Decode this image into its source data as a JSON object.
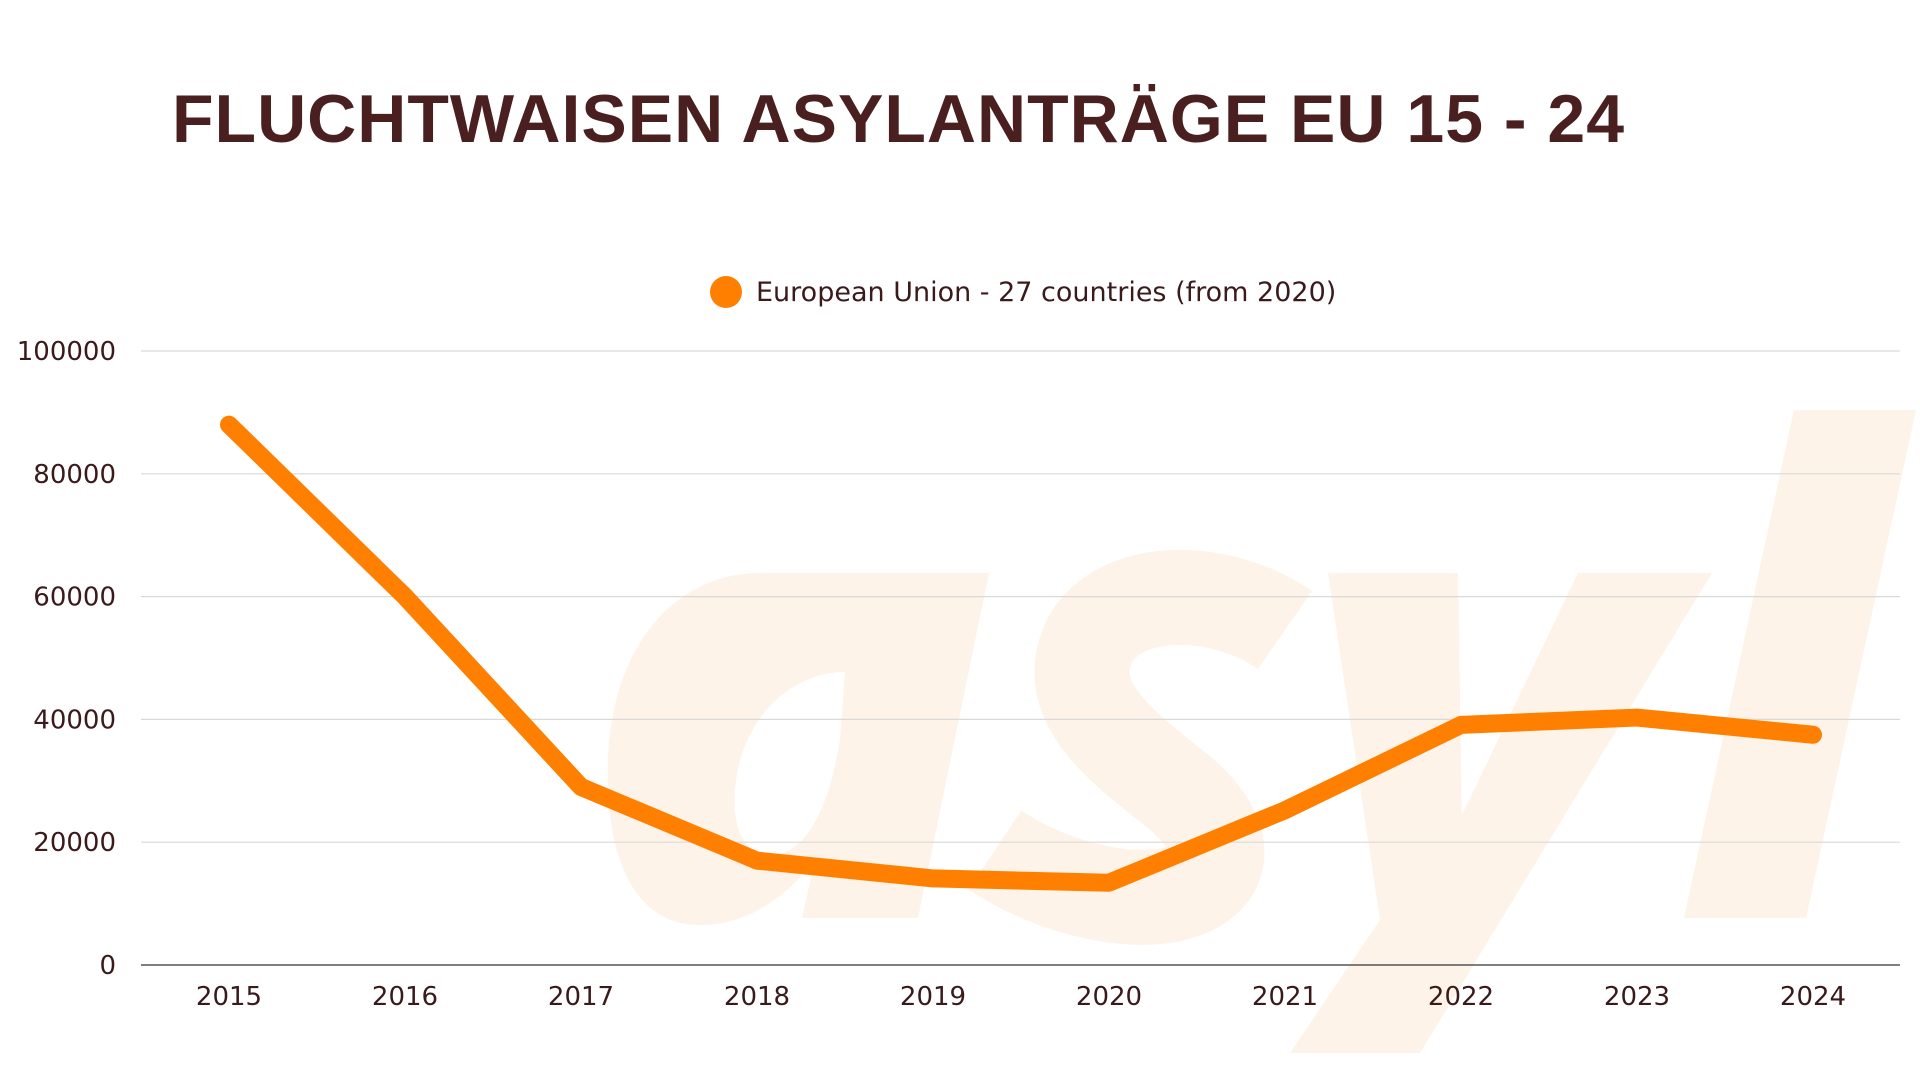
{
  "title": "FLUCHTWAISEN ASYLANTRÄGE EU 15 - 24",
  "watermark": "asyl",
  "chart_data": {
    "type": "line",
    "title": "FLUCHTWAISEN ASYLANTRÄGE EU 15 - 24",
    "xlabel": "",
    "ylabel": "",
    "categories": [
      "2015",
      "2016",
      "2017",
      "2018",
      "2019",
      "2020",
      "2021",
      "2022",
      "2023",
      "2024"
    ],
    "series": [
      {
        "name": "European Union - 27 countries (from 2020)",
        "color": "#ff8000",
        "values": [
          88000,
          60000,
          29000,
          17000,
          14100,
          13400,
          25200,
          39100,
          40300,
          37500
        ]
      }
    ],
    "ylim": [
      0,
      100000
    ],
    "yticks": [
      "0",
      "20000",
      "40000",
      "60000",
      "80000",
      "100000"
    ],
    "grid": true,
    "legend": "top-center"
  },
  "colors": {
    "title": "#4a1f1f",
    "grid": "#d9d9d9",
    "watermark": "#fdf3e8",
    "axis": "#555555"
  }
}
